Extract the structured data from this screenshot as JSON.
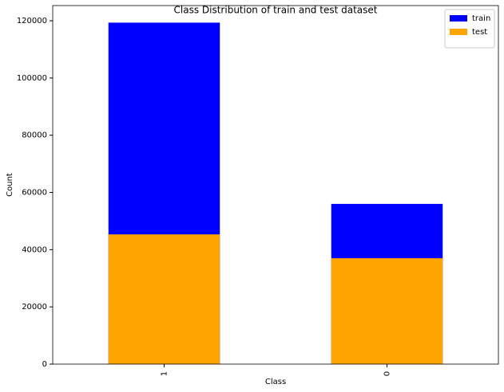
{
  "chart_data": {
    "type": "bar",
    "title": "Class Distribution of train and test dataset",
    "x_label": "Class",
    "y_label": "Count",
    "categories": [
      "1",
      "0"
    ],
    "series": [
      {
        "name": "train",
        "color": "#0000ff",
        "values": [
          119341,
          56000
        ]
      },
      {
        "name": "test",
        "color": "#ffa500",
        "values": [
          45332,
          37000
        ]
      }
    ],
    "ylim": [
      0,
      125308
    ],
    "yticks": [
      0,
      20000,
      40000,
      60000,
      80000,
      100000,
      120000
    ],
    "legend": "upper right"
  }
}
